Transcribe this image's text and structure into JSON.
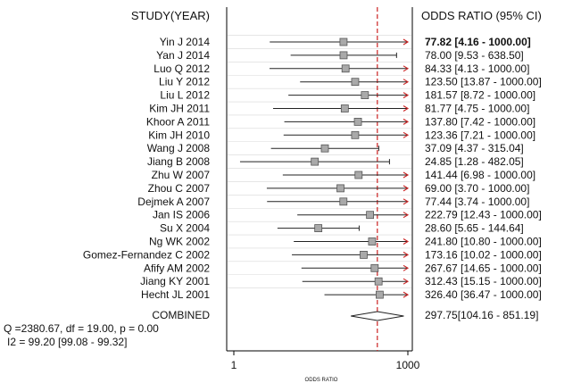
{
  "header": {
    "study": "STUDY(YEAR)",
    "or": "ODDS RATIO (95% CI)"
  },
  "footer": {
    "stat_line1": "Q =2380.67, df = 19.00, p =  0.00",
    "stat_line2": "I2 = 99.20 [99.08 - 99.32]"
  },
  "colors": {
    "axis": "#000000",
    "ci_line": "#222222",
    "marker_fill": "#a9a9a9",
    "marker_stroke": "#555555",
    "ref_line": "#cc2222",
    "arrow": "#cc2222",
    "row_divider": "#d8d8d8"
  },
  "chart_data": {
    "type": "forest",
    "title": "",
    "xlabel": "ODDS RATIO",
    "x_scale": "log",
    "xlim": [
      1,
      1000
    ],
    "x_ticks": [
      "1",
      "1000"
    ],
    "reference_line": 297.75,
    "studies": [
      {
        "name": "Yin J 2014",
        "or": 77.82,
        "lo": 4.16,
        "hi": 1000,
        "text": "77.82 [4.16 - 1000.00]",
        "bold": true
      },
      {
        "name": "Yan J 2014",
        "or": 78.0,
        "lo": 9.53,
        "hi": 638.5,
        "text": "78.00 [9.53 - 638.50]"
      },
      {
        "name": "Luo Q 2012",
        "or": 84.33,
        "lo": 4.13,
        "hi": 1000,
        "text": "84.33 [4.13 - 1000.00]"
      },
      {
        "name": "Liu Y 2012",
        "or": 123.5,
        "lo": 13.87,
        "hi": 1000,
        "text": "123.50 [13.87 - 1000.00]"
      },
      {
        "name": "Liu L 2012",
        "or": 181.57,
        "lo": 8.72,
        "hi": 1000,
        "text": "181.57 [8.72 - 1000.00]"
      },
      {
        "name": "Kim JH 2011",
        "or": 81.77,
        "lo": 4.75,
        "hi": 1000,
        "text": "81.77 [4.75 - 1000.00]"
      },
      {
        "name": "Khoor A 2011",
        "or": 137.8,
        "lo": 7.42,
        "hi": 1000,
        "text": "137.80 [7.42 - 1000.00]"
      },
      {
        "name": "Kim JH 2010",
        "or": 123.36,
        "lo": 7.21,
        "hi": 1000,
        "text": "123.36 [7.21 - 1000.00]"
      },
      {
        "name": "Wang J 2008",
        "or": 37.09,
        "lo": 4.37,
        "hi": 315.04,
        "text": "37.09 [4.37 - 315.04]"
      },
      {
        "name": "Jiang B 2008",
        "or": 24.85,
        "lo": 1.28,
        "hi": 482.05,
        "text": "24.85 [1.28 - 482.05]"
      },
      {
        "name": "Zhu W 2007",
        "or": 141.44,
        "lo": 6.98,
        "hi": 1000,
        "text": "141.44 [6.98 - 1000.00]"
      },
      {
        "name": "Zhou C 2007",
        "or": 69.0,
        "lo": 3.7,
        "hi": 1000,
        "text": "69.00 [3.70 - 1000.00]"
      },
      {
        "name": "Dejmek A 2007",
        "or": 77.44,
        "lo": 3.74,
        "hi": 1000,
        "text": "77.44 [3.74 - 1000.00]"
      },
      {
        "name": "Jan IS 2006",
        "or": 222.79,
        "lo": 12.43,
        "hi": 1000,
        "text": "222.79 [12.43 - 1000.00]"
      },
      {
        "name": "Su X 2004",
        "or": 28.6,
        "lo": 5.65,
        "hi": 144.64,
        "text": "28.60 [5.65 - 144.64]"
      },
      {
        "name": "Ng WK 2002",
        "or": 241.8,
        "lo": 10.8,
        "hi": 1000,
        "text": "241.80 [10.80 - 1000.00]"
      },
      {
        "name": "Gomez-Fernandez C 2002",
        "or": 173.16,
        "lo": 10.02,
        "hi": 1000,
        "text": "173.16 [10.02 - 1000.00]"
      },
      {
        "name": "Afify AM 2002",
        "or": 267.67,
        "lo": 14.65,
        "hi": 1000,
        "text": "267.67 [14.65 - 1000.00]"
      },
      {
        "name": "Jiang KY 2001",
        "or": 312.43,
        "lo": 15.15,
        "hi": 1000,
        "text": "312.43 [15.15 - 1000.00]"
      },
      {
        "name": "Hecht JL 2001",
        "or": 326.4,
        "lo": 36.47,
        "hi": 1000,
        "text": "326.40 [36.47 - 1000.00]"
      }
    ],
    "combined": {
      "name": "COMBINED",
      "or": 297.75,
      "lo": 104.16,
      "hi": 851.19,
      "text": "297.75[104.16 - 851.19]"
    }
  }
}
